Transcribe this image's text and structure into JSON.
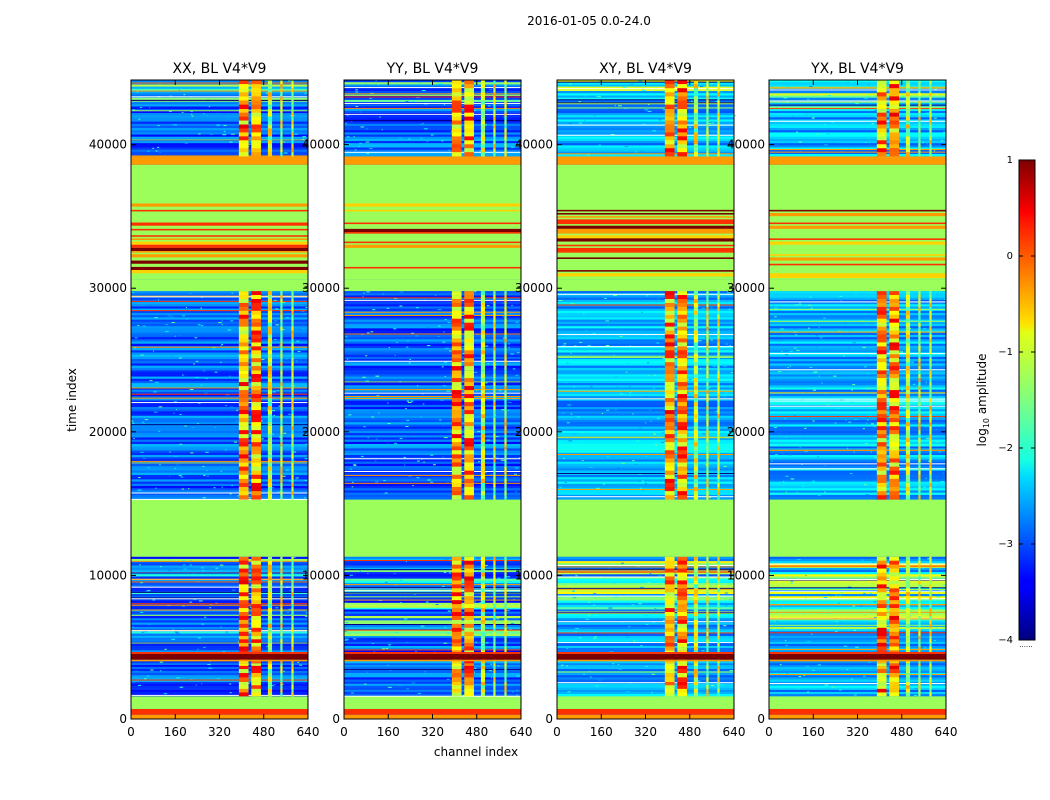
{
  "figure": {
    "suptitle": "2016-01-05 0.0-24.0"
  },
  "chart_data": {
    "type": "heatmap",
    "title": "2016-01-05 0.0-24.0",
    "xlabel": "channel index",
    "ylabel": "time index",
    "xlim": [
      0,
      640
    ],
    "ylim": [
      0,
      44500
    ],
    "xticks": [
      0,
      160,
      320,
      480,
      640
    ],
    "yticks": [
      0,
      10000,
      20000,
      30000,
      40000
    ],
    "panels": [
      {
        "title": "XX, BL V4*V9",
        "polarization": "XX",
        "baseline": "V4*V9"
      },
      {
        "title": "YY, BL V4*V9",
        "polarization": "YY",
        "baseline": "V4*V9"
      },
      {
        "title": "XY, BL V4*V9",
        "polarization": "XY",
        "baseline": "V4*V9"
      },
      {
        "title": "YX, BL V4*V9",
        "polarization": "YX",
        "baseline": "V4*V9"
      }
    ],
    "colorbar": {
      "label": "log₁₀ amplitude",
      "label_base": "log",
      "label_sub": "10",
      "label_rest": " amplitude",
      "colormap": "jet",
      "range": [
        -4,
        1
      ],
      "ticks": [
        1,
        0,
        -1,
        -2,
        -3,
        -4
      ],
      "tick_labels": [
        "1",
        "0",
        "−1",
        "−2",
        "−3",
        "−4"
      ],
      "dots": "......"
    },
    "bands": [
      {
        "t0": 0,
        "t1": 300,
        "kind": "orange"
      },
      {
        "t0": 300,
        "t1": 700,
        "kind": "red"
      },
      {
        "t0": 700,
        "t1": 1600,
        "kind": "green"
      },
      {
        "t0": 1600,
        "t1": 2600,
        "kind": "data"
      },
      {
        "t0": 2600,
        "t1": 3500,
        "kind": "data"
      },
      {
        "t0": 3500,
        "t1": 3900,
        "kind": "data"
      },
      {
        "t0": 3900,
        "t1": 4800,
        "kind": "hot"
      },
      {
        "t0": 4800,
        "t1": 5800,
        "kind": "data"
      },
      {
        "t0": 5800,
        "t1": 11300,
        "kind": "striped"
      },
      {
        "t0": 11300,
        "t1": 15300,
        "kind": "green"
      },
      {
        "t0": 15300,
        "t1": 19000,
        "kind": "data"
      },
      {
        "t0": 19000,
        "t1": 24300,
        "kind": "data"
      },
      {
        "t0": 24300,
        "t1": 29800,
        "kind": "data"
      },
      {
        "t0": 29800,
        "t1": 30600,
        "kind": "green"
      },
      {
        "t0": 30600,
        "t1": 35900,
        "kind": "flagstripes"
      },
      {
        "t0": 35900,
        "t1": 38600,
        "kind": "green"
      },
      {
        "t0": 38600,
        "t1": 39200,
        "kind": "orange"
      },
      {
        "t0": 39200,
        "t1": 42500,
        "kind": "data"
      },
      {
        "t0": 42500,
        "t1": 44500,
        "kind": "striped"
      }
    ],
    "rfi_channels": [
      {
        "c0": 390,
        "c1": 425
      },
      {
        "c0": 435,
        "c1": 470
      },
      {
        "c0": 495,
        "c1": 510
      },
      {
        "c0": 540,
        "c1": 548
      },
      {
        "c0": 580,
        "c1": 588
      }
    ]
  }
}
